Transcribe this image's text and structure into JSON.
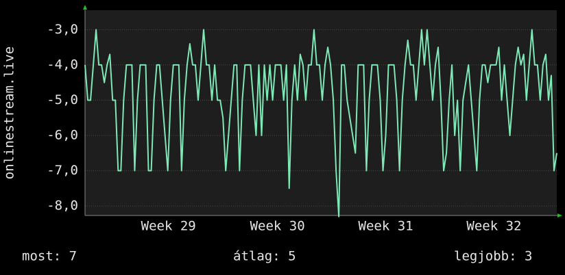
{
  "chart_data": {
    "type": "line",
    "y_label": "onlinestream.live",
    "ylim": [
      -8.27,
      -2.45
    ],
    "yticks": [
      {
        "value": -3,
        "label": "-3,0"
      },
      {
        "value": -4,
        "label": "-4,0"
      },
      {
        "value": -5,
        "label": "-5,0"
      },
      {
        "value": -6,
        "label": "-6,0"
      },
      {
        "value": -7,
        "label": "-7,0"
      },
      {
        "value": -8,
        "label": "-8,0"
      }
    ],
    "xlim": [
      0,
      171
    ],
    "xticks": [
      {
        "value": 30.25,
        "label": "Week 29"
      },
      {
        "value": 69.75,
        "label": "Week 30"
      },
      {
        "value": 109,
        "label": "Week 31"
      },
      {
        "value": 148.25,
        "label": "Week 32"
      }
    ],
    "grid": true,
    "series": [
      {
        "name": "onlinestream.live",
        "color": "#7ee8b6",
        "values": [
          -4,
          -5,
          -5,
          -4,
          -3,
          -4,
          -4,
          -4.5,
          -4,
          -3.7,
          -5,
          -5,
          -7,
          -7,
          -5,
          -4,
          -4,
          -4,
          -7,
          -5,
          -4,
          -4,
          -4,
          -7,
          -7,
          -5,
          -4,
          -4,
          -5,
          -6,
          -7,
          -5,
          -4,
          -4,
          -4,
          -7,
          -5,
          -4,
          -3.4,
          -4,
          -4,
          -5,
          -4,
          -3,
          -4,
          -4,
          -5,
          -4,
          -5,
          -5,
          -5.5,
          -7,
          -6,
          -5,
          -4,
          -4,
          -7,
          -5,
          -4,
          -4,
          -4,
          -5,
          -6,
          -4,
          -6,
          -4,
          -5,
          -4,
          -5,
          -4,
          -4,
          -4,
          -5,
          -4,
          -7.5,
          -5,
          -4,
          -5,
          -3.7,
          -4,
          -5,
          -4,
          -4,
          -3,
          -4,
          -4,
          -5,
          -4,
          -3.5,
          -4,
          -5,
          -7,
          -8.3,
          -4,
          -4,
          -5,
          -5.5,
          -6,
          -6.5,
          -4,
          -4,
          -4,
          -7,
          -5,
          -4,
          -4,
          -4,
          -5,
          -7,
          -6,
          -4,
          -4,
          -4,
          -5,
          -7,
          -5,
          -4,
          -3.3,
          -4,
          -4,
          -5,
          -4,
          -3,
          -4,
          -3,
          -4,
          -5,
          -4,
          -3.5,
          -5,
          -7,
          -6.5,
          -5,
          -4,
          -6,
          -5,
          -7,
          -5,
          -4.5,
          -4,
          -5,
          -6,
          -7,
          -5,
          -4,
          -4,
          -4.5,
          -4,
          -4,
          -4,
          -3.5,
          -5,
          -4,
          -5,
          -6,
          -5,
          -4,
          -3.5,
          -4,
          -3.7,
          -5,
          -4,
          -3,
          -4,
          -4,
          -5,
          -4,
          -3.7,
          -5,
          -4.3,
          -7,
          -6.5
        ]
      }
    ],
    "footer": [
      "most: 7",
      "átlag: 5",
      "legjobb: 3"
    ]
  }
}
